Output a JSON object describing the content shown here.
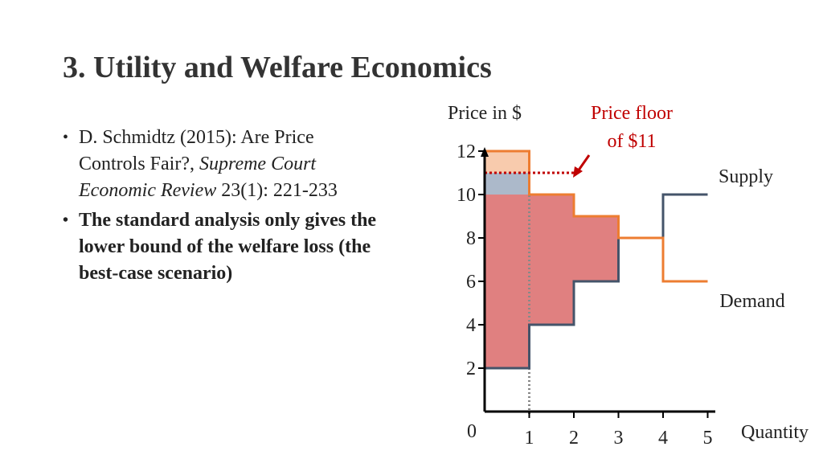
{
  "slide": {
    "title": "3. Utility and Welfare Economics"
  },
  "bullets": [
    {
      "parts": [
        {
          "text": "D. Schmidtz (2015): Are Price Controls Fair?, ",
          "italic": false
        },
        {
          "text": "Supreme Court Economic Review",
          "italic": true
        },
        {
          "text": " 23(1): 221-233",
          "italic": false
        }
      ]
    },
    {
      "text": "The standard analysis only gives the lower bound of the welfare loss (the best-case scenario)"
    }
  ],
  "colors": {
    "supply": "#44546a",
    "demand": "#ed7d31",
    "deadweight_fill": "#e08080",
    "consumer_fill": "#f8cbad",
    "producer_fill": "#acb9ca",
    "price_floor": "#c00000"
  },
  "chart_data": {
    "type": "line",
    "ylabel": "Price in $",
    "xlabel": "Quantity",
    "origin_label": "0",
    "x_ticks": [
      1,
      2,
      3,
      4,
      5
    ],
    "y_ticks": [
      2,
      4,
      6,
      8,
      10,
      12
    ],
    "xlim": [
      0,
      5
    ],
    "ylim": [
      0,
      13
    ],
    "series": [
      {
        "name": "Supply",
        "steps": [
          {
            "x": [
              0,
              1
            ],
            "y": 2
          },
          {
            "x": [
              1,
              2
            ],
            "y": 4
          },
          {
            "x": [
              2,
              3
            ],
            "y": 6
          },
          {
            "x": [
              3,
              4
            ],
            "y": 8
          },
          {
            "x": [
              4,
              5
            ],
            "y": 10
          }
        ]
      },
      {
        "name": "Demand",
        "steps": [
          {
            "x": [
              0,
              1
            ],
            "y": 12
          },
          {
            "x": [
              1,
              2
            ],
            "y": 10
          },
          {
            "x": [
              2,
              3
            ],
            "y": 9
          },
          {
            "x": [
              3,
              4
            ],
            "y": 8
          },
          {
            "x": [
              4,
              5
            ],
            "y": 6
          }
        ]
      }
    ],
    "price_floor": {
      "label": "Price floor of $11",
      "value": 11,
      "x": [
        0,
        2
      ]
    },
    "traded_quantity": 1
  }
}
